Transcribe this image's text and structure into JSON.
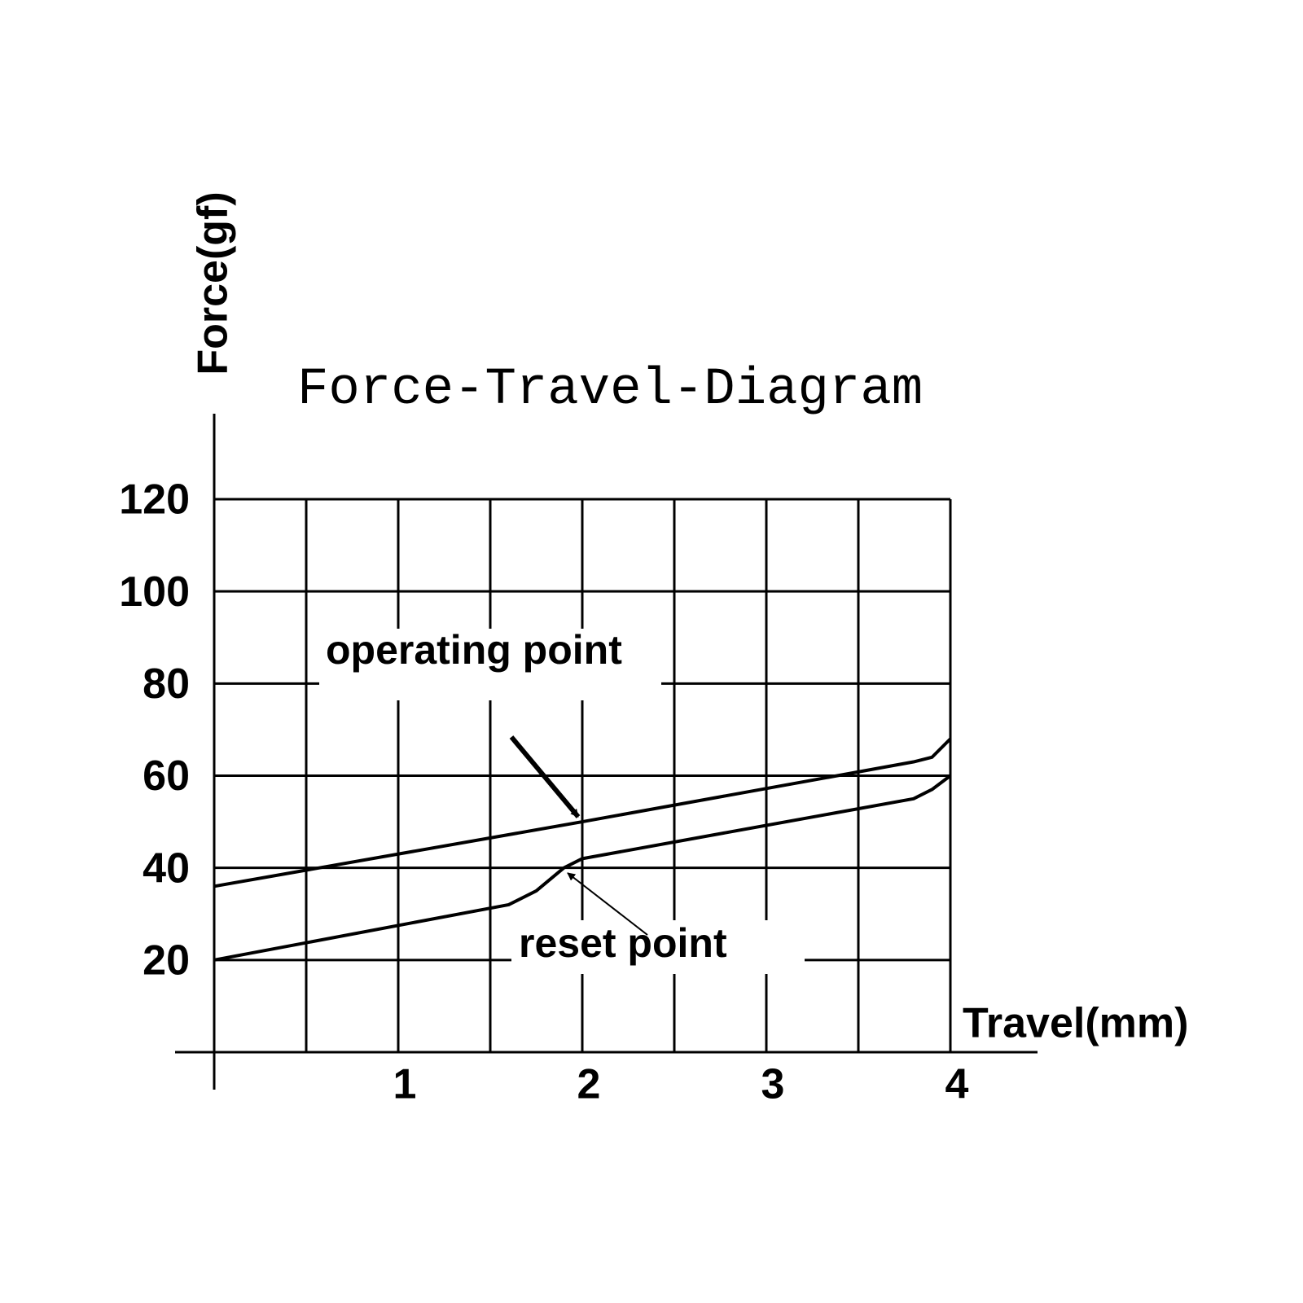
{
  "chart_data": {
    "type": "line",
    "title": "Force-Travel-Diagram",
    "x_label": "Travel(mm)",
    "y_label": "Force(gf)",
    "xlim": [
      0,
      4
    ],
    "ylim": [
      0,
      120
    ],
    "xticks": [
      1,
      2,
      3,
      4
    ],
    "x_minor_ticks": [
      0.5,
      1.5,
      2.5,
      3.5
    ],
    "yticks": [
      20,
      40,
      60,
      80,
      100,
      120
    ],
    "grid": true,
    "series": [
      {
        "name": "operating",
        "color": "#000000",
        "x": [
          0,
          2,
          3.8,
          3.9,
          4
        ],
        "values": [
          36,
          50,
          63,
          64,
          68
        ]
      },
      {
        "name": "reset",
        "color": "#000000",
        "x": [
          0,
          1.6,
          1.75,
          1.9,
          2,
          3.8,
          3.9,
          4
        ],
        "values": [
          20,
          32,
          35,
          40,
          42,
          55,
          57,
          60
        ]
      }
    ],
    "annotations": [
      "operating point",
      "reset point"
    ]
  }
}
